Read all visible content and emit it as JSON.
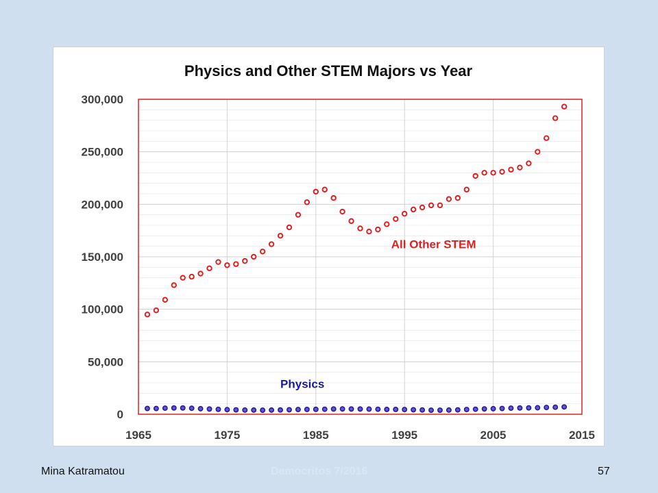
{
  "footer": {
    "author": "Mina Katramatou",
    "event": "Democritos 7/2016",
    "slide_number": "57"
  },
  "chart_data": {
    "type": "scatter",
    "title": "Physics and Other STEM Majors vs Year",
    "xlabel": "",
    "ylabel": "",
    "xlim": [
      1965,
      2015
    ],
    "ylim": [
      0,
      300000
    ],
    "x_ticks": [
      "1965",
      "1975",
      "1985",
      "1995",
      "2005",
      "2015"
    ],
    "y_ticks": [
      "0",
      "50,000",
      "100,000",
      "150,000",
      "200,000",
      "250,000",
      "300,000"
    ],
    "grid": true,
    "legend": "none",
    "plot_border_color": "#e02020",
    "series": [
      {
        "name": "All Other STEM",
        "color": "#e02020",
        "marker": "hollow-circle",
        "x": [
          1966,
          1967,
          1968,
          1969,
          1970,
          1971,
          1972,
          1973,
          1974,
          1975,
          1976,
          1977,
          1978,
          1979,
          1980,
          1981,
          1982,
          1983,
          1984,
          1985,
          1986,
          1987,
          1988,
          1989,
          1990,
          1991,
          1992,
          1993,
          1994,
          1995,
          1996,
          1997,
          1998,
          1999,
          2000,
          2001,
          2002,
          2003,
          2004,
          2005,
          2006,
          2007,
          2008,
          2009,
          2010,
          2011,
          2012,
          2013
        ],
        "y": [
          95000,
          99000,
          109000,
          123000,
          130000,
          131000,
          134000,
          139000,
          145000,
          142000,
          143000,
          146000,
          150000,
          155000,
          162000,
          170000,
          178000,
          190000,
          202000,
          212000,
          214000,
          206000,
          193000,
          184000,
          177000,
          174000,
          176000,
          181000,
          186000,
          191000,
          195000,
          197000,
          199000,
          199000,
          205000,
          206000,
          214000,
          227000,
          230000,
          230000,
          231000,
          233000,
          235000,
          239000,
          250000,
          263000,
          282000,
          293000
        ]
      },
      {
        "name": "Physics",
        "color": "#1a1aa0",
        "fill": "#6a4fcf",
        "marker": "filled-circle",
        "x": [
          1966,
          1967,
          1968,
          1969,
          1970,
          1971,
          1972,
          1973,
          1974,
          1975,
          1976,
          1977,
          1978,
          1979,
          1980,
          1981,
          1982,
          1983,
          1984,
          1985,
          1986,
          1987,
          1988,
          1989,
          1990,
          1991,
          1992,
          1993,
          1994,
          1995,
          1996,
          1997,
          1998,
          1999,
          2000,
          2001,
          2002,
          2003,
          2004,
          2005,
          2006,
          2007,
          2008,
          2009,
          2010,
          2011,
          2012,
          2013
        ],
        "y": [
          5500,
          5500,
          5800,
          6000,
          6000,
          5700,
          5300,
          5000,
          4700,
          4400,
          4200,
          4000,
          4000,
          3900,
          4000,
          4100,
          4300,
          4500,
          4600,
          4700,
          4800,
          5000,
          5100,
          5000,
          5000,
          4900,
          4800,
          4600,
          4600,
          4500,
          4300,
          4100,
          3900,
          3900,
          4000,
          4200,
          4500,
          4800,
          5100,
          5300,
          5500,
          5800,
          6000,
          6100,
          6200,
          6500,
          6700,
          7000
        ]
      }
    ],
    "annotations": [
      {
        "text": "All Other STEM",
        "color": "#e02020",
        "x": 1993.5,
        "y": 158000
      },
      {
        "text": "Physics",
        "color": "#1a1aa0",
        "x": 1981,
        "y": 25000
      }
    ]
  }
}
